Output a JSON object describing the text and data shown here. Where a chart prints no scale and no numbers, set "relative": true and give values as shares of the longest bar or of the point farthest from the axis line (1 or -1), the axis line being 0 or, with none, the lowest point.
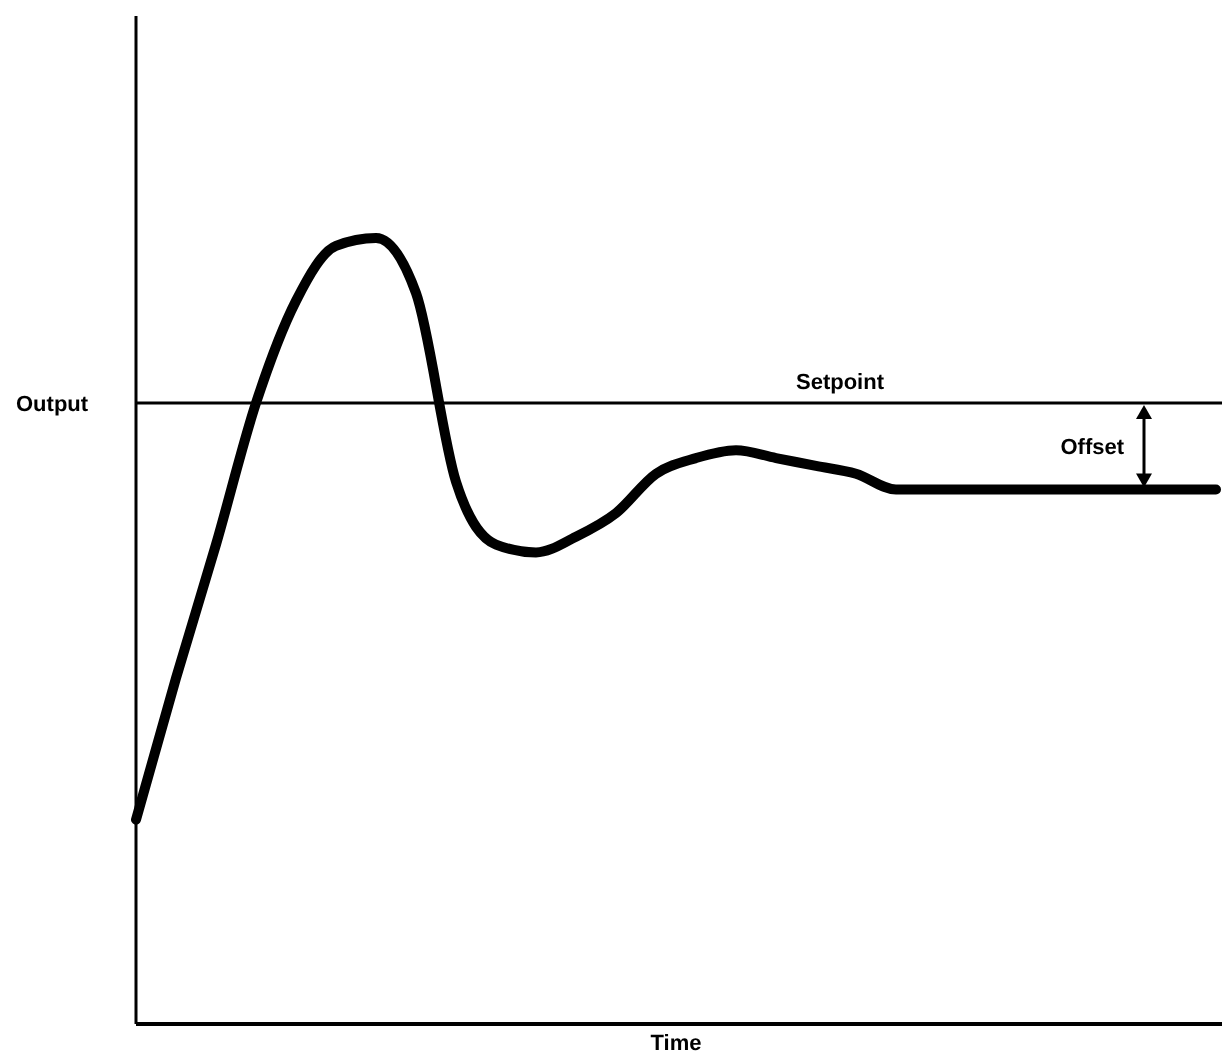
{
  "chart_data": {
    "type": "line",
    "relative": true,
    "xlabel": "Time",
    "ylabel": "Output",
    "categories": [
      null,
      null,
      null,
      null,
      null,
      null,
      null,
      null,
      null,
      null,
      null,
      null,
      null,
      null,
      null,
      null,
      null,
      null,
      null,
      null,
      null,
      null,
      null,
      null,
      null,
      null,
      null,
      null
    ],
    "series": [
      {
        "color": "#000000",
        "values": [
          0.26,
          0.44,
          0.61,
          0.79,
          0.92,
          0.99,
          1,
          0.93,
          0.69,
          0.61,
          0.6,
          0.62,
          0.65,
          0.7,
          0.72,
          0.73,
          0.72,
          0.71,
          0.7,
          0.68,
          0.68,
          0.68,
          0.68,
          0.68,
          0.68,
          0.68,
          0.68,
          0.68
        ]
      }
    ],
    "ref_lines": [
      {
        "axis": "y",
        "value": 0.79,
        "label": "Setpoint",
        "color": "#000000"
      }
    ],
    "annotations": [
      "Offset"
    ],
    "marker": "none",
    "line_style": "solid",
    "grid": false
  }
}
